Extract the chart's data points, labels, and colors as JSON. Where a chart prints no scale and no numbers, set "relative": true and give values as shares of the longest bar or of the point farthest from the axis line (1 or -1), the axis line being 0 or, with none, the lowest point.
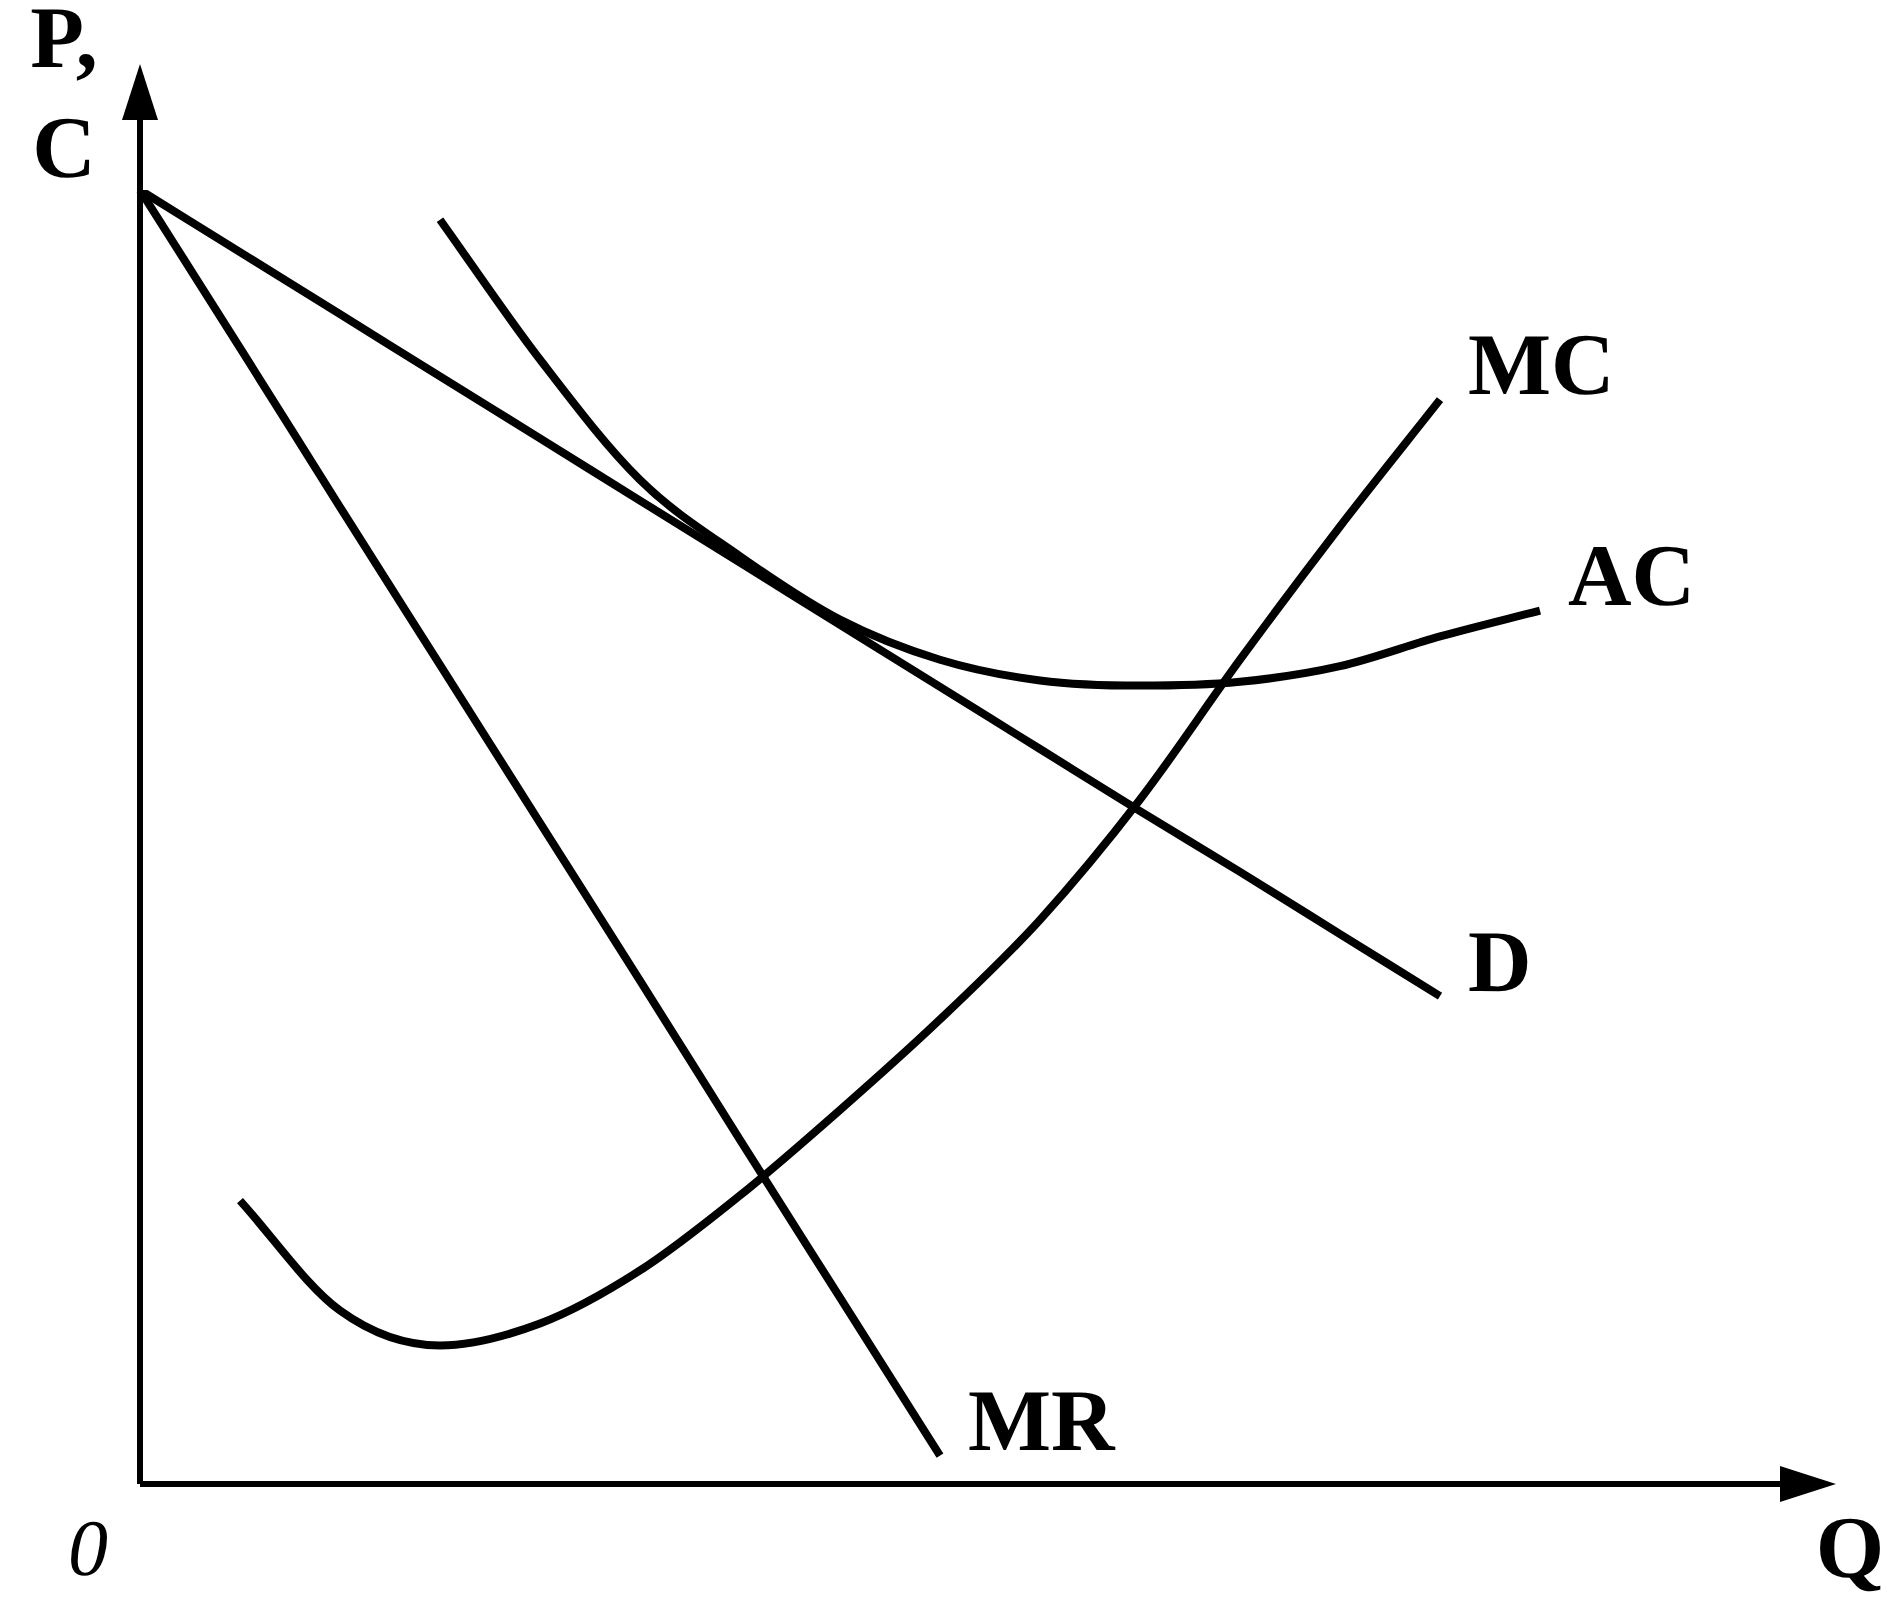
{
  "chart_data": {
    "type": "line",
    "relative": true,
    "xlabel": "Q",
    "ylabel": "P,\nC",
    "annotations": [
      "0"
    ],
    "tick_labels": false,
    "categories": [
      null,
      null,
      null,
      null,
      null,
      null,
      null,
      null,
      null,
      null,
      null,
      null,
      null,
      null,
      null,
      null,
      null
    ],
    "series": [
      {
        "name": "MC",
        "color": "#000000",
        "values": [
          null,
          0.219,
          0.134,
          0.107,
          0.124,
          0.165,
          0.223,
          0.289,
          0.359,
          0.436,
          0.529,
          0.637,
          0.74,
          0.838,
          null,
          null,
          null
        ]
      },
      {
        "name": "AC",
        "color": "#000000",
        "values": [
          null,
          null,
          null,
          0.977,
          0.869,
          0.776,
          0.717,
          0.668,
          0.637,
          0.621,
          0.617,
          0.62,
          0.632,
          0.655,
          0.675,
          null,
          null
        ]
      },
      {
        "name": "D",
        "color": "#000000",
        "values": [
          1,
          0.952,
          0.904,
          0.856,
          0.808,
          0.76,
          0.712,
          0.664,
          0.616,
          0.568,
          0.52,
          0.473,
          0.425,
          0.377,
          null,
          null,
          null
        ]
      },
      {
        "name": "MR",
        "color": "#000000",
        "values": [
          1,
          0.878,
          0.755,
          0.633,
          0.511,
          0.389,
          0.266,
          0.144,
          0.022,
          null,
          null,
          null,
          null,
          null,
          null,
          null,
          null
        ]
      }
    ]
  }
}
